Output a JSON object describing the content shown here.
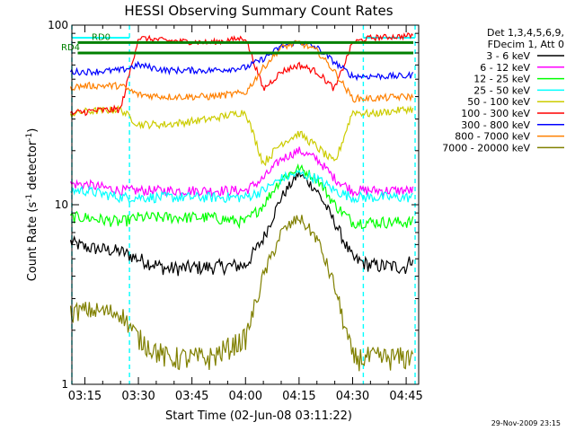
{
  "chart_data": {
    "type": "line",
    "title": "HESSI Observing Summary Count Rates",
    "xlabel": "Start Time (02-Jun-08 03:11:22)",
    "ylabel": "Count Rate (s⁻¹ detector⁻¹)",
    "ylabel_main": "Count Rate (s",
    "ylabel_sup1": "-1",
    "ylabel_mid": " detector",
    "ylabel_sup2": "-1",
    "ylabel_end": ")",
    "footer": "29-Nov-2009 23:15",
    "scale": "log",
    "ylim": [
      1,
      100
    ],
    "yticks": [
      1,
      10,
      100
    ],
    "ytick_labels": [
      "1",
      "10",
      "100"
    ],
    "xlim": [
      "03:11:22",
      "04:48:30"
    ],
    "xticks": [
      "03:15",
      "03:30",
      "03:45",
      "04:00",
      "04:15",
      "04:30",
      "04:45"
    ],
    "grid": false,
    "legend": {
      "placement": "right",
      "header": [
        "Det 1,3,4,5,6,9,",
        "FDecim 1, Att 0"
      ],
      "entries": [
        {
          "label": "3 - 6 keV",
          "color": "#000000"
        },
        {
          "label": "6 - 12 keV",
          "color": "#ff00ff"
        },
        {
          "label": "12 - 25 keV",
          "color": "#00ff00"
        },
        {
          "label": "25 - 50 keV",
          "color": "#00ffff"
        },
        {
          "label": "50 - 100 keV",
          "color": "#cccc00"
        },
        {
          "label": "100 - 300 keV",
          "color": "#ff0000"
        },
        {
          "label": "300 - 800 keV",
          "color": "#0000ff"
        },
        {
          "label": "800 - 7000 keV",
          "color": "#ff8000"
        },
        {
          "label": "7000 - 20000 keV",
          "color": "#808000"
        }
      ]
    },
    "annotations": [
      {
        "label": "RD0",
        "color": "#008000",
        "level": 80,
        "x_from": "03:13",
        "x_to": "04:47"
      },
      {
        "label": "RD4",
        "color": "#008000",
        "level": 70,
        "x_from": "03:13",
        "x_to": "04:47"
      }
    ],
    "shaded_intervals": [
      {
        "color": "#00ffff",
        "from": "03:11:22",
        "to": "03:27:30"
      },
      {
        "color": "#00ffff",
        "from": "04:33:00",
        "to": "04:47:30"
      }
    ],
    "series": [
      {
        "name": "3 - 6 keV",
        "color": "#000000",
        "x": [
          "03:11",
          "03:15",
          "03:25",
          "03:30",
          "03:38",
          "03:50",
          "04:00",
          "04:05",
          "04:10",
          "04:15",
          "04:20",
          "04:25",
          "04:30",
          "04:35",
          "04:45",
          "04:47"
        ],
        "values": [
          6.2,
          5.8,
          5.5,
          5.0,
          4.4,
          4.5,
          4.6,
          6.5,
          11.0,
          15.0,
          12.0,
          8.0,
          5.0,
          4.6,
          4.5,
          5.2
        ]
      },
      {
        "name": "6 - 12 keV",
        "color": "#ff00ff",
        "x": [
          "03:11",
          "03:15",
          "03:25",
          "03:30",
          "03:38",
          "03:50",
          "04:00",
          "04:05",
          "04:10",
          "04:15",
          "04:20",
          "04:25",
          "04:30",
          "04:35",
          "04:45",
          "04:47"
        ],
        "values": [
          13,
          13,
          12,
          12,
          12,
          12,
          12,
          14,
          18,
          20,
          18,
          14,
          12,
          12,
          12,
          12
        ]
      },
      {
        "name": "12 - 25 keV",
        "color": "#00ff00",
        "x": [
          "03:11",
          "03:15",
          "03:25",
          "03:30",
          "03:38",
          "03:50",
          "04:00",
          "04:05",
          "04:10",
          "04:15",
          "04:20",
          "04:25",
          "04:30",
          "04:35",
          "04:45",
          "04:47"
        ],
        "values": [
          8.5,
          8.5,
          8.0,
          8.5,
          8.5,
          8.5,
          8.0,
          10.0,
          14.0,
          16.0,
          14.0,
          10.0,
          8.0,
          8.0,
          8.0,
          8.0
        ]
      },
      {
        "name": "25 - 50 keV",
        "color": "#00ffff",
        "x": [
          "03:11",
          "03:15",
          "03:25",
          "03:30",
          "03:38",
          "03:50",
          "04:00",
          "04:05",
          "04:10",
          "04:15",
          "04:20",
          "04:25",
          "04:30",
          "04:35",
          "04:45",
          "04:47"
        ],
        "values": [
          12,
          12,
          11,
          11,
          11,
          11,
          11,
          12,
          14,
          15,
          14,
          12,
          11,
          11,
          11,
          11
        ]
      },
      {
        "name": "50 - 100 keV",
        "color": "#cccc00",
        "x": [
          "03:11",
          "03:15",
          "03:25",
          "03:30",
          "03:38",
          "03:50",
          "04:00",
          "04:05",
          "04:10",
          "04:15",
          "04:20",
          "04:25",
          "04:30",
          "04:35",
          "04:45",
          "04:47"
        ],
        "values": [
          32,
          33,
          34,
          28,
          28,
          30,
          33,
          17,
          22,
          25,
          21,
          17,
          33,
          32,
          34,
          34
        ]
      },
      {
        "name": "100 - 300 keV",
        "color": "#ff0000",
        "x": [
          "03:11",
          "03:15",
          "03:25",
          "03:30",
          "03:38",
          "03:50",
          "04:00",
          "04:05",
          "04:10",
          "04:15",
          "04:20",
          "04:25",
          "04:30",
          "04:35",
          "04:45",
          "04:47"
        ],
        "values": [
          32,
          33,
          34,
          85,
          82,
          80,
          85,
          44,
          55,
          60,
          55,
          44,
          80,
          85,
          87,
          88
        ]
      },
      {
        "name": "300 - 800 keV",
        "color": "#0000ff",
        "x": [
          "03:11",
          "03:15",
          "03:25",
          "03:30",
          "03:38",
          "03:50",
          "04:00",
          "04:05",
          "04:10",
          "04:15",
          "04:20",
          "04:25",
          "04:30",
          "04:35",
          "04:45",
          "04:47"
        ],
        "values": [
          55,
          55,
          56,
          60,
          56,
          56,
          58,
          65,
          76,
          81,
          75,
          62,
          52,
          52,
          52,
          53
        ]
      },
      {
        "name": "800 - 7000 keV",
        "color": "#ff8000",
        "x": [
          "03:11",
          "03:15",
          "03:25",
          "03:30",
          "03:38",
          "03:50",
          "04:00",
          "04:05",
          "04:10",
          "04:15",
          "04:20",
          "04:25",
          "04:30",
          "04:35",
          "04:45",
          "04:47"
        ],
        "values": [
          45,
          46,
          46,
          41,
          40,
          40,
          42,
          58,
          75,
          80,
          72,
          55,
          39,
          39,
          40,
          40
        ]
      },
      {
        "name": "7000 - 20000 keV",
        "color": "#808000",
        "x": [
          "03:11",
          "03:15",
          "03:25",
          "03:30",
          "03:38",
          "03:50",
          "04:00",
          "04:05",
          "04:10",
          "04:15",
          "04:20",
          "04:25",
          "04:30",
          "04:35",
          "04:45",
          "04:47"
        ],
        "values": [
          2.5,
          2.6,
          2.5,
          1.8,
          1.4,
          1.4,
          1.8,
          4.0,
          7.0,
          8.5,
          6.5,
          3.5,
          1.4,
          1.4,
          1.4,
          1.5
        ]
      }
    ]
  }
}
